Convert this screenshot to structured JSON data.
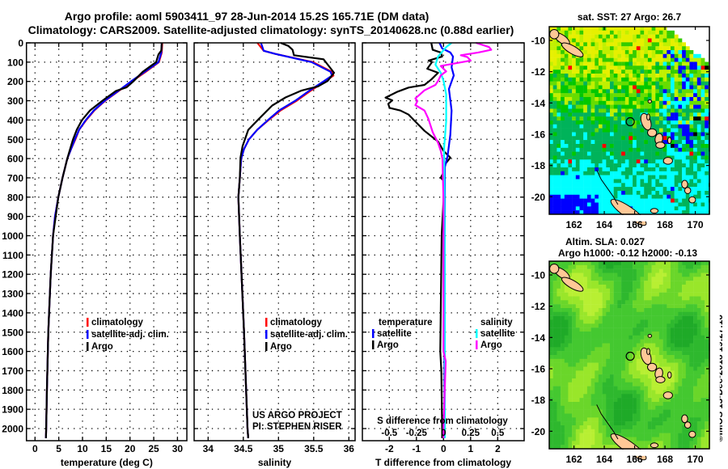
{
  "header": {
    "title_line1": "Argo profile: aoml 5903411_97 28-Jun-2014 15.2S 165.71E (DM data)",
    "title_line2": "Climatology: CARS2009. Satellite-adjusted climatology: synTS_20140628.nc (0.88d earlier)"
  },
  "credits": {
    "project": "US ARGO PROJECT",
    "pi": "PI: STEPHEN RISER",
    "imos_stamp": "©IMOS 13-Dec-2018 19:27:16"
  },
  "colors": {
    "climatology": "#ff0000",
    "satellite": "#0000ff",
    "argo": "#000000",
    "salinity_satellite": "#00ffff",
    "salinity_argo": "#ff00ff"
  },
  "chart_data": [
    {
      "type": "line",
      "xlabel": "temperature (deg C)",
      "ylabel": "depth",
      "xlim": [
        -1.8,
        32
      ],
      "ylim": [
        2060,
        0
      ],
      "xticks": [
        0,
        5,
        10,
        15,
        20,
        25,
        30
      ],
      "yticks": [
        0,
        100,
        200,
        300,
        400,
        500,
        600,
        700,
        800,
        900,
        1000,
        1100,
        1200,
        1300,
        1400,
        1500,
        1600,
        1700,
        1800,
        1900,
        2000
      ],
      "grid": true,
      "legend_position": "lower-center",
      "legend": [
        {
          "label": "climatology",
          "color": "#ff0000"
        },
        {
          "label": "satellite-adj. clim.",
          "color": "#0000ff"
        },
        {
          "label": "Argo",
          "color": "#000000"
        }
      ],
      "series": [
        {
          "name": "climatology",
          "color": "#ff0000",
          "depth": [
            0,
            50,
            100,
            150,
            200,
            250,
            300,
            350,
            400,
            450,
            500,
            550,
            600,
            700,
            800,
            900,
            1000,
            1200,
            1500,
            1800,
            2000,
            2050
          ],
          "values": [
            26.8,
            26.7,
            26.1,
            23.3,
            20.4,
            17.6,
            14.8,
            12.5,
            10.8,
            9.3,
            8.5,
            7.6,
            6.8,
            5.8,
            4.9,
            4.2,
            3.8,
            3.3,
            2.8,
            2.5,
            2.35,
            2.3
          ]
        },
        {
          "name": "satellite-adj. clim.",
          "color": "#0000ff",
          "depth": [
            0,
            50,
            100,
            150,
            200,
            250,
            300,
            350,
            400,
            450,
            500,
            550,
            600,
            700,
            800,
            900,
            1000,
            1200,
            1500,
            1800,
            2000,
            2050
          ],
          "values": [
            26.7,
            26.6,
            26.0,
            23.1,
            20.2,
            17.5,
            14.7,
            12.4,
            10.7,
            9.3,
            8.4,
            7.6,
            6.8,
            5.8,
            4.9,
            4.2,
            3.8,
            3.3,
            2.8,
            2.5,
            2.35,
            2.3
          ]
        },
        {
          "name": "Argo",
          "color": "#000000",
          "depth": [
            0,
            40,
            60,
            100,
            150,
            200,
            230,
            250,
            300,
            350,
            400,
            450,
            500,
            550,
            600,
            700,
            800,
            1000,
            1200,
            1500,
            1800,
            2000,
            2050
          ],
          "values": [
            26.7,
            26.6,
            26.0,
            25.5,
            22.7,
            20.7,
            19.3,
            17.0,
            14.2,
            11.6,
            9.9,
            8.8,
            8.0,
            7.4,
            6.8,
            5.8,
            4.9,
            3.8,
            3.3,
            2.8,
            2.5,
            2.35,
            2.3
          ]
        }
      ]
    },
    {
      "type": "line",
      "xlabel": "salinity",
      "ylabel": "depth",
      "xlim": [
        33.8,
        36.09
      ],
      "ylim": [
        2060,
        0
      ],
      "xticks": [
        34,
        34.5,
        35,
        35.5,
        36
      ],
      "yticks": [
        0,
        100,
        200,
        300,
        400,
        500,
        600,
        700,
        800,
        900,
        1000,
        1100,
        1200,
        1300,
        1400,
        1500,
        1600,
        1700,
        1800,
        1900,
        2000
      ],
      "grid": true,
      "legend_position": "lower-right",
      "legend": [
        {
          "label": "climatology",
          "color": "#ff0000"
        },
        {
          "label": "satellite-adj. clim.",
          "color": "#0000ff"
        },
        {
          "label": "Argo",
          "color": "#000000"
        }
      ],
      "series": [
        {
          "name": "climatology",
          "color": "#ff0000",
          "depth": [
            0,
            41,
            57,
            100,
            150,
            170,
            200,
            250,
            300,
            350,
            400,
            450,
            500,
            550,
            600,
            700,
            800,
            1000,
            1500,
            2000,
            2050
          ],
          "values": [
            34.7,
            34.79,
            34.95,
            35.49,
            35.76,
            35.78,
            35.66,
            35.45,
            35.26,
            35.03,
            34.86,
            34.7,
            34.58,
            34.51,
            34.47,
            34.45,
            34.43,
            34.45,
            34.51,
            34.56,
            34.57
          ]
        },
        {
          "name": "satellite-adj. clim.",
          "color": "#0000ff",
          "depth": [
            0,
            41,
            57,
            100,
            150,
            170,
            200,
            250,
            300,
            350,
            400,
            450,
            500,
            550,
            600,
            700,
            800,
            1000,
            1500,
            2000,
            2050
          ],
          "values": [
            34.75,
            34.79,
            34.95,
            35.47,
            35.74,
            35.76,
            35.64,
            35.43,
            35.24,
            35.01,
            34.85,
            34.7,
            34.58,
            34.51,
            34.47,
            34.45,
            34.43,
            34.45,
            34.51,
            34.56,
            34.57
          ]
        },
        {
          "name": "Argo",
          "color": "#000000",
          "depth": [
            0,
            16,
            36,
            64,
            85,
            113,
            155,
            197,
            226,
            247,
            283,
            325,
            395,
            451,
            535,
            595,
            700,
            800,
            1000,
            1500,
            2000,
            2050
          ],
          "values": [
            35.03,
            35.14,
            35.2,
            35.22,
            35.64,
            35.7,
            35.79,
            35.7,
            35.56,
            35.33,
            35.1,
            34.91,
            34.72,
            34.57,
            34.49,
            34.46,
            34.45,
            34.43,
            34.45,
            34.51,
            34.56,
            34.57
          ]
        }
      ]
    },
    {
      "type": "line",
      "xlabel": "T difference from climatology",
      "xlabel_secondary": "S difference from climatology",
      "ylabel": "depth",
      "xlim": [
        -3,
        3
      ],
      "xlim_secondary": [
        -0.75,
        0.75
      ],
      "ylim": [
        2060,
        0
      ],
      "xticks": [
        -2,
        -1,
        0,
        1,
        2
      ],
      "xticks_secondary": [
        -0.5,
        -0.25,
        0,
        0.25,
        0.5
      ],
      "yticks": [
        0,
        100,
        200,
        300,
        400,
        500,
        600,
        700,
        800,
        900,
        1000,
        1100,
        1200,
        1300,
        1400,
        1500,
        1600,
        1700,
        1800,
        1900,
        2000
      ],
      "grid": true,
      "legend_position": "lower",
      "legend": {
        "left_title": "temperature",
        "left": [
          {
            "label": "satellite",
            "color": "#0000ff"
          },
          {
            "label": "Argo",
            "color": "#000000"
          }
        ],
        "right_title": "salinity",
        "right": [
          {
            "label": "satellite",
            "color": "#00ffff"
          },
          {
            "label": "Argo",
            "color": "#ff00ff"
          }
        ]
      },
      "series": [
        {
          "name": "temperature Argo",
          "axis": "T",
          "color": "#000000",
          "depth": [
            0,
            36,
            50,
            71,
            92,
            99,
            134,
            155,
            190,
            218,
            232,
            253,
            284,
            298,
            316,
            337,
            351,
            372,
            421,
            456,
            512,
            560,
            595,
            630,
            672,
            700,
            714,
            819,
            1000,
            1600,
            1700,
            2000,
            2050
          ],
          "values": [
            -0.45,
            -0.4,
            -0.1,
            -0.05,
            -0.55,
            -0.42,
            -0.6,
            -0.2,
            -0.45,
            -0.7,
            -1.29,
            -1.69,
            -2.14,
            -1.89,
            -2.04,
            -1.99,
            -1.59,
            -1.29,
            -0.95,
            -0.7,
            -0.2,
            0,
            0.25,
            0.05,
            0,
            -0.1,
            0,
            0,
            -0.07,
            -0.12,
            -0.08,
            -0.05,
            -0.05
          ]
        },
        {
          "name": "temperature satellite",
          "axis": "T",
          "color": "#0000ff",
          "depth": [
            0,
            29,
            50,
            71,
            127,
            169,
            239,
            351,
            477,
            588,
            644,
            819,
            1200,
            2000,
            2050
          ],
          "values": [
            -0.15,
            -0.05,
            0.25,
            0.35,
            0.3,
            0.38,
            0.2,
            0.3,
            0.25,
            0.15,
            0.05,
            0.05,
            0.04,
            0.03,
            0.03
          ]
        },
        {
          "name": "salinity satellite",
          "axis": "S",
          "color": "#00ffff",
          "depth": [
            0,
            22,
            71,
            113,
            155,
            197,
            267,
            407,
            546,
            819,
            1200,
            2000,
            2050
          ],
          "values": [
            0.075,
            0.025,
            -0.05,
            -0.075,
            -0.025,
            0,
            0.025,
            0.025,
            0.005,
            0.01,
            0.013,
            0.013,
            0.013
          ]
        },
        {
          "name": "salinity Argo",
          "axis": "S",
          "color": "#ff00ff",
          "depth": [
            0,
            22,
            36,
            50,
            64,
            74,
            92,
            120,
            148,
            169,
            197,
            218,
            246,
            288,
            302,
            323,
            351,
            393,
            463,
            519,
            560,
            602,
            819,
            1600,
            1650,
            2000,
            2050
          ],
          "values": [
            0.3,
            0.42,
            0.44,
            0.32,
            0.16,
            0.22,
            0.25,
            -0.025,
            0.025,
            -0.025,
            -0.05,
            -0.075,
            -0.175,
            -0.26,
            -0.24,
            -0.26,
            -0.175,
            -0.14,
            -0.1,
            -0.05,
            -0.025,
            -0.01,
            0,
            0,
            0.02,
            0,
            0
          ]
        }
      ]
    },
    {
      "type": "heatmap",
      "variable": "satellite SST",
      "title": "sat. SST: 27 Argo: 26.7",
      "xlim": [
        160.37,
        170.93
      ],
      "ylim": [
        -21.1,
        -9.12
      ],
      "xticks": [
        162,
        164,
        166,
        168,
        170
      ],
      "yticks": [
        -10,
        -12,
        -14,
        -16,
        -18,
        -20
      ],
      "argo_position": {
        "lon": 165.71,
        "lat": -15.2
      }
    },
    {
      "type": "heatmap",
      "variable": "altimetry SLA",
      "title": "Altim. SLA: 0.027",
      "subtitle": "Argo h1000: -0.12 h2000: -0.13",
      "xlim": [
        160.37,
        170.93
      ],
      "ylim": [
        -21.1,
        -9.12
      ],
      "xticks": [
        162,
        164,
        166,
        168,
        170
      ],
      "yticks": [
        -10,
        -12,
        -14,
        -16,
        -18,
        -20
      ],
      "argo_position": {
        "lon": 165.71,
        "lat": -15.2
      }
    }
  ]
}
